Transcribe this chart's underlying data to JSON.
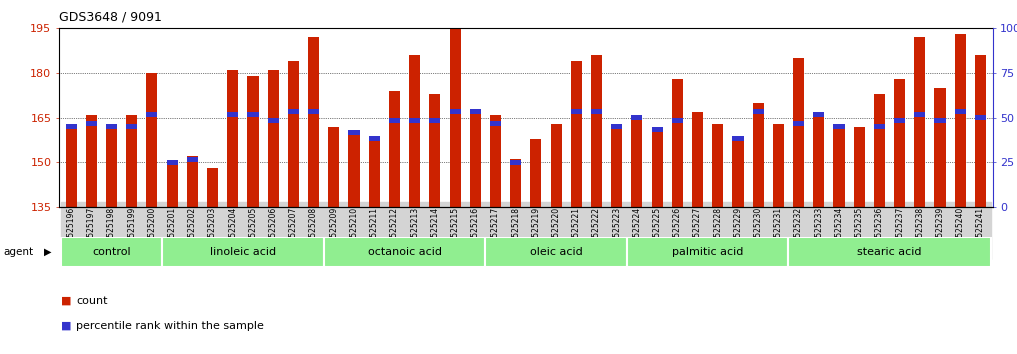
{
  "title": "GDS3648 / 9091",
  "samples": [
    "GSM525196",
    "GSM525197",
    "GSM525198",
    "GSM525199",
    "GSM525200",
    "GSM525201",
    "GSM525202",
    "GSM525203",
    "GSM525204",
    "GSM525205",
    "GSM525206",
    "GSM525207",
    "GSM525208",
    "GSM525209",
    "GSM525210",
    "GSM525211",
    "GSM525212",
    "GSM525213",
    "GSM525214",
    "GSM525215",
    "GSM525216",
    "GSM525217",
    "GSM525218",
    "GSM525219",
    "GSM525220",
    "GSM525221",
    "GSM525222",
    "GSM525223",
    "GSM525224",
    "GSM525225",
    "GSM525226",
    "GSM525227",
    "GSM525228",
    "GSM525229",
    "GSM525230",
    "GSM525231",
    "GSM525232",
    "GSM525233",
    "GSM525234",
    "GSM525235",
    "GSM525236",
    "GSM525237",
    "GSM525238",
    "GSM525239",
    "GSM525240",
    "GSM525241"
  ],
  "count_values": [
    163,
    166,
    163,
    166,
    180,
    150,
    152,
    148,
    181,
    179,
    181,
    184,
    192,
    162,
    160,
    158,
    174,
    186,
    173,
    196,
    168,
    166,
    151,
    158,
    163,
    184,
    186,
    163,
    165,
    161,
    178,
    167,
    163,
    158,
    170,
    163,
    185,
    166,
    162,
    162,
    173,
    178,
    192,
    175,
    193,
    186
  ],
  "percentile_values": [
    162,
    163,
    162,
    162,
    166,
    150,
    151,
    0,
    166,
    166,
    164,
    167,
    167,
    0,
    160,
    158,
    164,
    164,
    164,
    167,
    167,
    163,
    150,
    0,
    0,
    167,
    167,
    162,
    165,
    161,
    164,
    0,
    0,
    158,
    167,
    0,
    163,
    166,
    162,
    0,
    162,
    164,
    166,
    164,
    167,
    165
  ],
  "groups": [
    {
      "label": "control",
      "start": 0,
      "end": 5
    },
    {
      "label": "linoleic acid",
      "start": 5,
      "end": 13
    },
    {
      "label": "octanoic acid",
      "start": 13,
      "end": 21
    },
    {
      "label": "oleic acid",
      "start": 21,
      "end": 28
    },
    {
      "label": "palmitic acid",
      "start": 28,
      "end": 36
    },
    {
      "label": "stearic acid",
      "start": 36,
      "end": 46
    }
  ],
  "y_min": 135,
  "y_max": 195,
  "y_ticks": [
    135,
    150,
    165,
    180,
    195
  ],
  "bar_color": "#cc2200",
  "percentile_color": "#3333cc",
  "group_fill_light": "#e8f8e8",
  "group_fill_dark": "#7de87d",
  "group_border": "#ffffff",
  "agent_label": "agent",
  "legend_count": "count",
  "legend_percentile": "percentile rank within the sample",
  "tick_bg_even": "#d8d8d8",
  "tick_bg_odd": "#e8e8e8"
}
